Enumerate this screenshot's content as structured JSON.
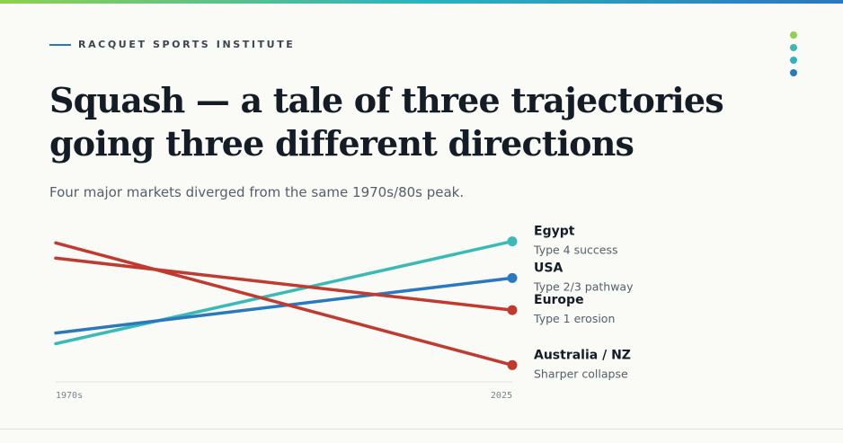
{
  "brand": "RACQUET SPORTS INSTITUTE",
  "chart_data": {
    "type": "line",
    "title": "Squash — a tale of three trajectories going three different directions",
    "subtitle": "Four major markets diverged from the same 1970s/80s peak.",
    "categories": [
      "1970s",
      "2025"
    ],
    "ylim": [
      0,
      100
    ],
    "series": [
      {
        "name": "Egypt",
        "note": "Type 4 success",
        "color": "#3bbab5",
        "values": [
          25,
          92
        ]
      },
      {
        "name": "USA",
        "note": "Type 2/3 pathway",
        "color": "#2a78bd",
        "values": [
          32,
          68
        ]
      },
      {
        "name": "Europe",
        "note": "Type 1 erosion",
        "color": "#bf3b30",
        "values": [
          81,
          47
        ]
      },
      {
        "name": "Australia / NZ",
        "note": "Sharper collapse",
        "color": "#bf3b30",
        "values": [
          91,
          11
        ]
      }
    ]
  }
}
